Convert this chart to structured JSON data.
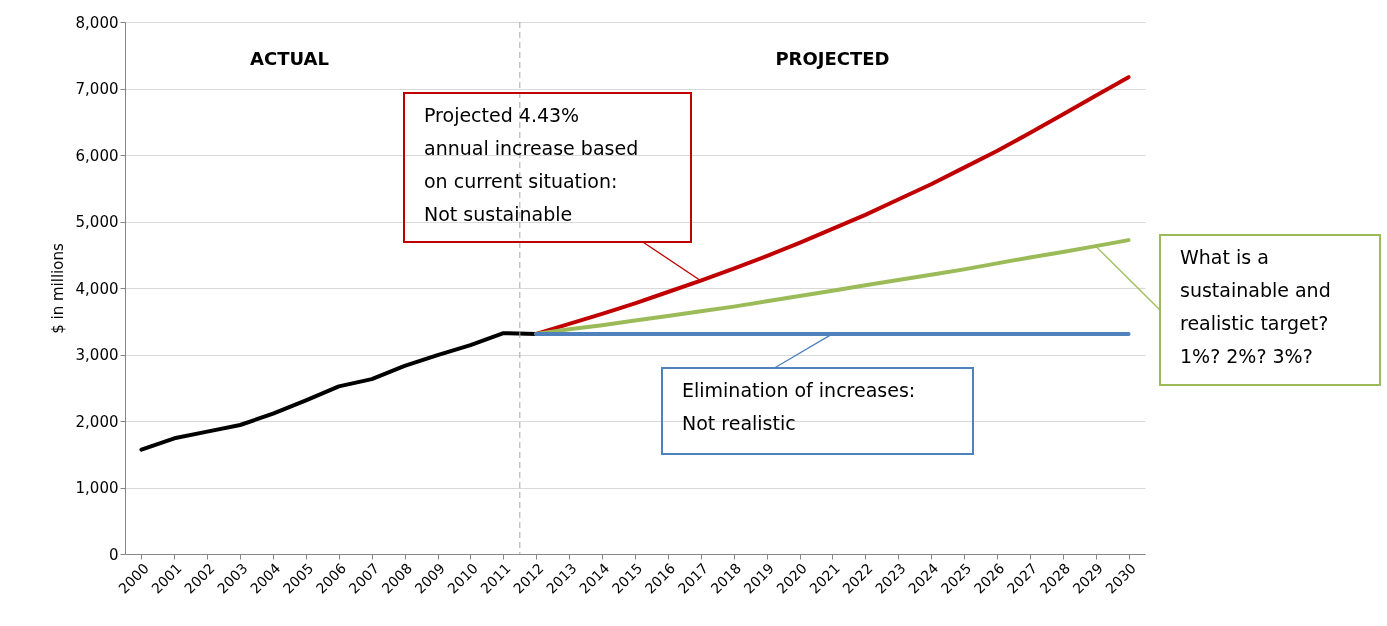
{
  "chart_data": {
    "type": "line",
    "ylabel": "$ in millions",
    "xlim": [
      1999.5,
      2030.5
    ],
    "xticks": [
      2000,
      2001,
      2002,
      2003,
      2004,
      2005,
      2006,
      2007,
      2008,
      2009,
      2010,
      2011,
      2012,
      2013,
      2014,
      2015,
      2016,
      2017,
      2018,
      2019,
      2020,
      2021,
      2022,
      2023,
      2024,
      2025,
      2026,
      2027,
      2028,
      2029,
      2030
    ],
    "ylim": [
      0,
      8000
    ],
    "yticks": [
      0,
      {
        "value": 1000,
        "label": "1,000"
      },
      {
        "value": 2000,
        "label": "2,000"
      },
      {
        "value": 3000,
        "label": "3,000"
      },
      {
        "value": 4000,
        "label": "4,000"
      },
      {
        "value": 5000,
        "label": "5,000"
      },
      {
        "value": 6000,
        "label": "6,000"
      },
      {
        "value": 7000,
        "label": "7,000"
      },
      {
        "value": 8000,
        "label": "8,000"
      }
    ],
    "grid": "y",
    "marker": "none",
    "line_style": "solid",
    "series": [
      {
        "color": "#000000",
        "x": [
          2000,
          2001,
          2002,
          2003,
          2004,
          2005,
          2006,
          2007,
          2008,
          2009,
          2010,
          2011,
          2012
        ],
        "values": [
          1570,
          1740,
          1840,
          1940,
          2110,
          2310,
          2520,
          2630,
          2830,
          2990,
          3140,
          3320,
          3310
        ]
      },
      {
        "color": "#c00000",
        "x": [
          2012,
          2013,
          2014,
          2015,
          2016,
          2017,
          2018,
          2019,
          2020,
          2021,
          2022,
          2023,
          2024,
          2025,
          2026,
          2027,
          2028,
          2029,
          2030
        ],
        "values": [
          3310,
          3460,
          3610,
          3770,
          3940,
          4110,
          4290,
          4480,
          4680,
          4890,
          5100,
          5330,
          5560,
          5810,
          6060,
          6330,
          6610,
          6890,
          7170
        ]
      },
      {
        "color": "#9bbb59",
        "x": [
          2012,
          2013,
          2014,
          2015,
          2016,
          2017,
          2018,
          2019,
          2020,
          2021,
          2022,
          2023,
          2024,
          2025,
          2026,
          2027,
          2028,
          2029,
          2030
        ],
        "values": [
          3310,
          3380,
          3440,
          3510,
          3580,
          3650,
          3720,
          3800,
          3880,
          3960,
          4040,
          4120,
          4200,
          4280,
          4370,
          4460,
          4540,
          4630,
          4720
        ]
      },
      {
        "color": "#4f81bd",
        "x": [
          2012,
          2013,
          2014,
          2015,
          2016,
          2017,
          2018,
          2019,
          2020,
          2021,
          2022,
          2023,
          2024,
          2025,
          2026,
          2027,
          2028,
          2029,
          2030
        ],
        "values": [
          3310,
          3310,
          3310,
          3310,
          3310,
          3310,
          3310,
          3310,
          3310,
          3310,
          3310,
          3310,
          3310,
          3310,
          3310,
          3310,
          3310,
          3310,
          3310
        ]
      }
    ],
    "ref_lines": [
      {
        "axis": "x",
        "value": 2011.5,
        "color": "#a6a6a6",
        "line_style": "dashed"
      }
    ],
    "annotations": [
      "ACTUAL",
      "PROJECTED",
      {
        "text": "Projected 4.43%\nannual increase based\non current situation:\nNot sustainable",
        "x": 2017,
        "y": 4110
      },
      {
        "text": "What is a\nsustainable and\nrealistic target?\n1%? 2%? 3%?",
        "x": 2029,
        "y": 4630
      },
      {
        "text": "Elimination of increases:\nNot realistic",
        "x": 2021,
        "y": 3310
      }
    ]
  }
}
